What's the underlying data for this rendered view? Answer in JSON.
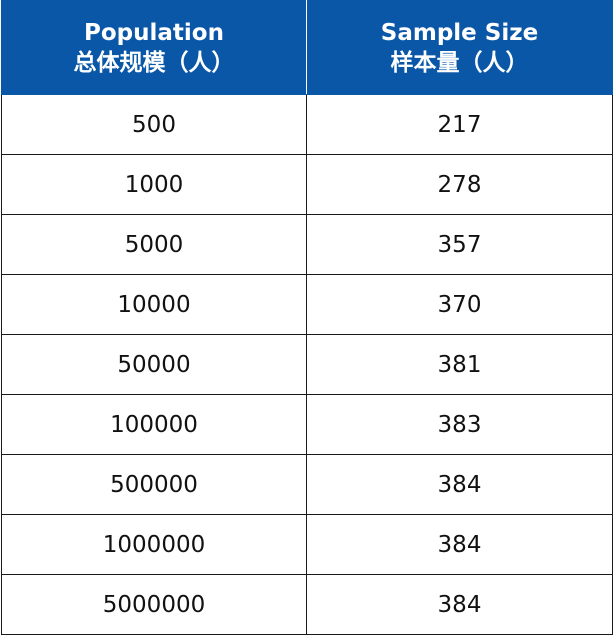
{
  "table": {
    "headers": [
      {
        "en": "Population",
        "zh": "总体规模（人）"
      },
      {
        "en": "Sample Size",
        "zh": "样本量（人）"
      }
    ],
    "rows": [
      {
        "population": "500",
        "sample_size": "217"
      },
      {
        "population": "1000",
        "sample_size": "278"
      },
      {
        "population": "5000",
        "sample_size": "357"
      },
      {
        "population": "10000",
        "sample_size": "370"
      },
      {
        "population": "50000",
        "sample_size": "381"
      },
      {
        "population": "100000",
        "sample_size": "383"
      },
      {
        "population": "500000",
        "sample_size": "384"
      },
      {
        "population": "1000000",
        "sample_size": "384"
      },
      {
        "population": "5000000",
        "sample_size": "384"
      }
    ]
  },
  "colors": {
    "header_bg": "#0a57a8",
    "header_text": "#ffffff",
    "border": "#1a1a1a"
  }
}
